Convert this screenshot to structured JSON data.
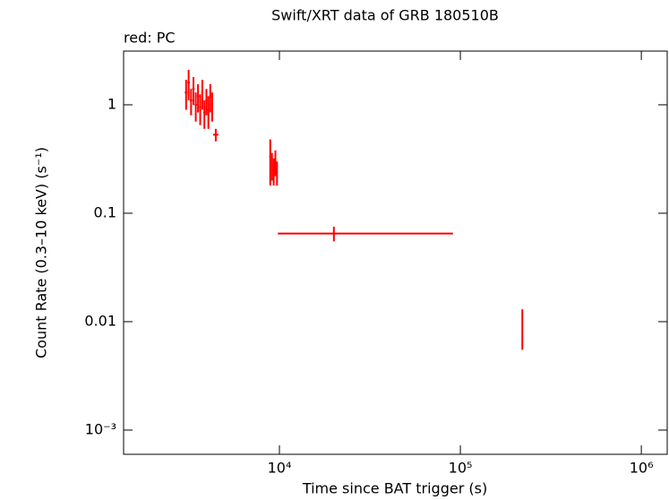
{
  "chart_data": {
    "type": "errorbar",
    "title": "Swift/XRT data of GRB 180510B",
    "subtitle": "red: PC",
    "x_label": "Time since BAT trigger (s)",
    "y_label": "Count Rate (0.3–10 keV) (s⁻¹)",
    "log_x": true,
    "log_y": true,
    "xlim": [
      1377,
      1390000
    ],
    "ylim": [
      0.000598,
      3.13
    ],
    "xticks": [
      {
        "value": 10000,
        "label": "10⁴"
      },
      {
        "value": 100000,
        "label": "10⁵"
      },
      {
        "value": 1000000,
        "label": "10⁶"
      }
    ],
    "yticks": [
      1,
      0.1,
      0.01,
      {
        "value": 0.001,
        "label": "10⁻³"
      }
    ],
    "series": [
      {
        "name": "PC",
        "color": "#ff0000",
        "x": [
          3050,
          3150,
          3250,
          3350,
          3450,
          3550,
          3650,
          3750,
          3850,
          3950,
          4050,
          4150,
          4250,
          4450,
          8900,
          9100,
          9300,
          9500,
          9700,
          20000,
          220000
        ],
        "values": [
          1.3,
          1.6,
          1.1,
          1.4,
          1.0,
          1.2,
          0.95,
          1.3,
          0.85,
          1.1,
          0.9,
          1.2,
          1.0,
          0.53,
          0.33,
          0.28,
          0.25,
          0.3,
          0.24,
          0.065,
          0.0085
        ],
        "xerr": [
          [
            50,
            50
          ],
          [
            50,
            50
          ],
          [
            50,
            50
          ],
          [
            50,
            50
          ],
          [
            50,
            50
          ],
          [
            50,
            50
          ],
          [
            50,
            50
          ],
          [
            50,
            50
          ],
          [
            50,
            50
          ],
          [
            50,
            50
          ],
          [
            50,
            50
          ],
          [
            50,
            50
          ],
          [
            50,
            50
          ],
          [
            150,
            150
          ],
          [
            100,
            100
          ],
          [
            100,
            100
          ],
          [
            100,
            100
          ],
          [
            100,
            100
          ],
          [
            100,
            100
          ],
          [
            10200,
            71000
          ],
          [
            1000,
            1000
          ]
        ],
        "yerr": [
          [
            0.4,
            0.4
          ],
          [
            0.5,
            0.5
          ],
          [
            0.3,
            0.3
          ],
          [
            0.4,
            0.4
          ],
          [
            0.3,
            0.3
          ],
          [
            0.35,
            0.35
          ],
          [
            0.3,
            0.3
          ],
          [
            0.4,
            0.4
          ],
          [
            0.25,
            0.25
          ],
          [
            0.3,
            0.3
          ],
          [
            0.3,
            0.3
          ],
          [
            0.35,
            0.35
          ],
          [
            0.3,
            0.3
          ],
          [
            0.07,
            0.07
          ],
          [
            0.15,
            0.15
          ],
          [
            0.08,
            0.08
          ],
          [
            0.07,
            0.07
          ],
          [
            0.08,
            0.08
          ],
          [
            0.06,
            0.06
          ],
          [
            0.01,
            0.01
          ],
          [
            0.003,
            0.0045
          ]
        ]
      }
    ]
  }
}
